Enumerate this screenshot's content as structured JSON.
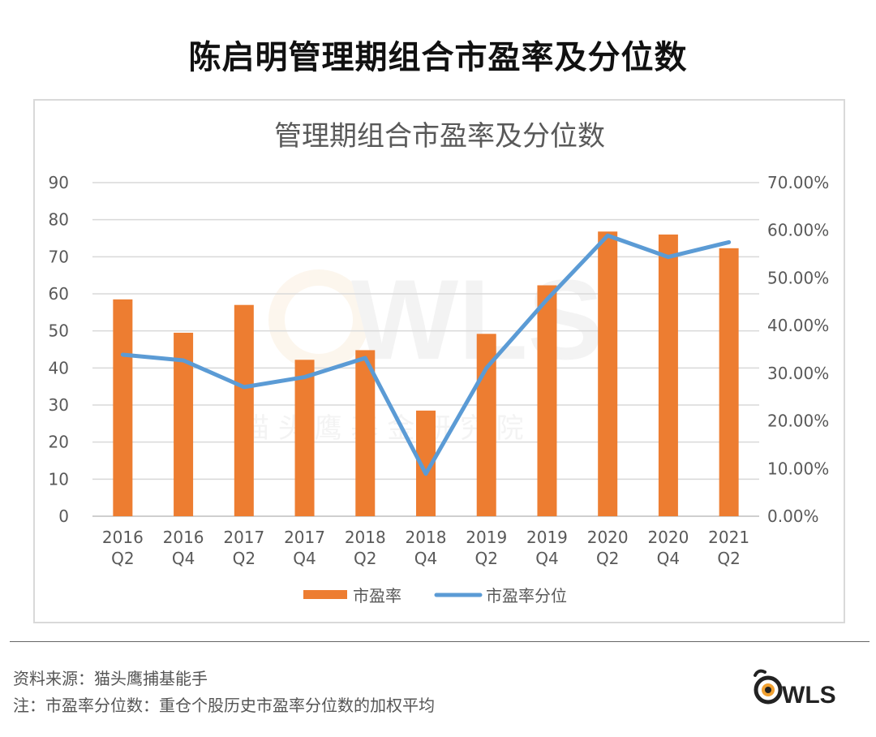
{
  "page": {
    "title": "陈启明管理期组合市盈率及分位数",
    "source_note": "资料来源：猫头鹰捕基能手",
    "definition_note": "注：市盈率分位数：重仓个股历史市盈率分位数的加权平均",
    "logo_text": "WLS"
  },
  "watermark": {
    "logo_text": "WLS",
    "text": "猫 头 鹰 基 金 研 究 院"
  },
  "chart_data": {
    "type": "bar",
    "title": "管理期组合市盈率及分位数",
    "categories": [
      "2016 Q2",
      "2016 Q4",
      "2017 Q2",
      "2017 Q4",
      "2018 Q2",
      "2018 Q4",
      "2019 Q2",
      "2019 Q4",
      "2020 Q2",
      "2020 Q4",
      "2021 Q2"
    ],
    "category_lines": [
      [
        "2016",
        "Q2"
      ],
      [
        "2016",
        "Q4"
      ],
      [
        "2017",
        "Q2"
      ],
      [
        "2017",
        "Q4"
      ],
      [
        "2018",
        "Q2"
      ],
      [
        "2018",
        "Q4"
      ],
      [
        "2019",
        "Q2"
      ],
      [
        "2019",
        "Q4"
      ],
      [
        "2020",
        "Q2"
      ],
      [
        "2020",
        "Q4"
      ],
      [
        "2021",
        "Q2"
      ]
    ],
    "series": [
      {
        "name": "市盈率",
        "type": "bar",
        "axis": "left",
        "color": "#ed7d31",
        "values": [
          58.5,
          49.5,
          57,
          42.2,
          44.8,
          28.5,
          49.2,
          62.3,
          76.8,
          76,
          72.3
        ]
      },
      {
        "name": "市盈率分位",
        "type": "line",
        "axis": "right",
        "color": "#5b9bd5",
        "values": [
          0.339,
          0.327,
          0.271,
          0.292,
          0.332,
          0.089,
          0.311,
          0.455,
          0.589,
          0.544,
          0.575
        ]
      }
    ],
    "y_left": {
      "ylim": [
        0,
        90
      ],
      "ticks": [
        0,
        10,
        20,
        30,
        40,
        50,
        60,
        70,
        80,
        90
      ]
    },
    "y_right": {
      "ylim": [
        0,
        0.7
      ],
      "ticks": [
        "0.00%",
        "10.00%",
        "20.00%",
        "30.00%",
        "40.00%",
        "50.00%",
        "60.00%",
        "70.00%"
      ]
    },
    "grid": true,
    "legend_position": "bottom"
  }
}
